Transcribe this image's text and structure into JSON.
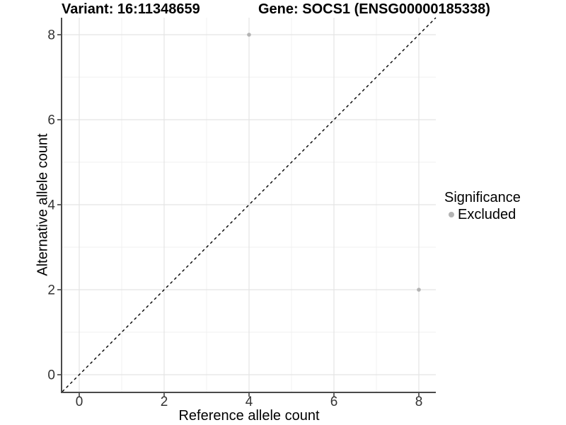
{
  "header": {
    "variant_title": "Variant: 16:11348659",
    "gene_title": "Gene: SOCS1 (ENSG00000185338)"
  },
  "chart_data": {
    "type": "scatter",
    "xlabel": "Reference allele count",
    "ylabel": "Alternative allele count",
    "xlim": [
      -0.4,
      8.4
    ],
    "ylim": [
      -0.4,
      8.4
    ],
    "xticks": [
      0,
      2,
      4,
      6,
      8
    ],
    "yticks": [
      0,
      2,
      4,
      6,
      8
    ],
    "xminor": [
      1,
      3,
      5,
      7
    ],
    "yminor": [
      1,
      3,
      5,
      7
    ],
    "grid": "major and minor gridlines on white panel",
    "identity_line": {
      "style": "dashed",
      "slope": 1,
      "intercept": 0,
      "color": "#000000"
    },
    "series": [
      {
        "name": "Excluded",
        "color": "#b3b3b3",
        "points": [
          {
            "x": 4,
            "y": 8
          },
          {
            "x": 8,
            "y": 2
          }
        ]
      }
    ],
    "legend": {
      "title": "Significance",
      "position": "right",
      "items": [
        {
          "label": "Excluded",
          "color": "#b3b3b3",
          "marker": "circle"
        }
      ]
    }
  },
  "colors": {
    "background": "#ffffff",
    "grid_major": "#e4e4e4",
    "grid_minor": "#f1f1f1",
    "axis_line": "#4a4a4a",
    "tick_text": "#333333",
    "title_text": "#000000",
    "point": "#b3b3b3"
  }
}
